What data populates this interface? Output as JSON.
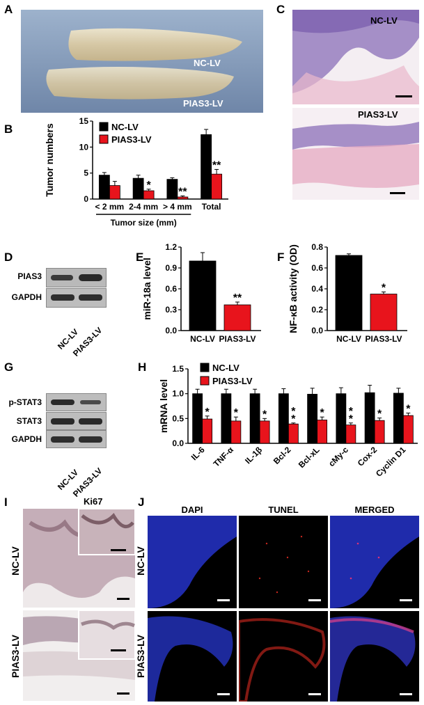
{
  "panels": {
    "A": "A",
    "B": "B",
    "C": "C",
    "D": "D",
    "E": "E",
    "F": "F",
    "G": "G",
    "H": "H",
    "I": "I",
    "J": "J"
  },
  "groups": {
    "nc": "NC-LV",
    "pias": "PIAS3-LV"
  },
  "blot_labels": {
    "d": [
      "PIAS3",
      "GAPDH"
    ],
    "g": [
      "p-STAT3",
      "STAT3",
      "GAPDH"
    ]
  },
  "ihc_label": "Ki67",
  "fluor_titles": [
    "DAPI",
    "TUNEL",
    "MERGED"
  ],
  "colors": {
    "nc": "#000000",
    "pias": "#e8141c"
  },
  "chart_data": [
    {
      "id": "B",
      "type": "bar",
      "ylabel": "Tumor numbers",
      "xlabel": "Tumor size (mm)",
      "categories": [
        "< 2 mm",
        "2-4 mm",
        "> 4 mm",
        "Total"
      ],
      "ylim": [
        0,
        15
      ],
      "yticks": [
        "0",
        "5",
        "10",
        "15"
      ],
      "series": [
        {
          "name": "NC-LV",
          "values": [
            4.6,
            4.0,
            3.8,
            12.4
          ],
          "errors": [
            0.5,
            0.6,
            0.3,
            1.0
          ]
        },
        {
          "name": "PIAS3-LV",
          "values": [
            2.6,
            1.6,
            0.4,
            4.8
          ],
          "errors": [
            0.8,
            0.3,
            0.2,
            0.9
          ]
        }
      ],
      "significance": [
        "",
        "*",
        "**",
        "**"
      ]
    },
    {
      "id": "E",
      "type": "bar",
      "ylabel": "miR-18a level",
      "categories": [
        "NC-LV",
        "PIAS3-LV"
      ],
      "ylim": [
        0,
        1.2
      ],
      "yticks": [
        "0.0",
        "0.3",
        "0.6",
        "0.9",
        "1.2"
      ],
      "values": [
        1.0,
        0.37
      ],
      "errors": [
        0.12,
        0.04
      ],
      "significance": [
        "",
        "**"
      ]
    },
    {
      "id": "F",
      "type": "bar",
      "ylabel": "NF-κB activity (OD)",
      "categories": [
        "NC-LV",
        "PIAS3-LV"
      ],
      "ylim": [
        0,
        0.8
      ],
      "yticks": [
        "0.0",
        "0.2",
        "0.4",
        "0.6",
        "0.8"
      ],
      "values": [
        0.72,
        0.35
      ],
      "errors": [
        0.015,
        0.02
      ],
      "significance": [
        "",
        "*"
      ]
    },
    {
      "id": "H",
      "type": "bar",
      "ylabel": "mRNA level",
      "categories": [
        "IL-6",
        "TNF-α",
        "IL-1β",
        "Bcl-2",
        "Bcl-xL",
        "cMy-c",
        "Cox-2",
        "Cyclin D1"
      ],
      "ylim": [
        0,
        1.5
      ],
      "yticks": [
        "0.0",
        "0.5",
        "1.0",
        "1.5"
      ],
      "series": [
        {
          "name": "NC-LV",
          "values": [
            1.0,
            1.0,
            1.0,
            1.0,
            0.99,
            1.0,
            1.02,
            1.01
          ],
          "errors": [
            0.09,
            0.09,
            0.09,
            0.1,
            0.12,
            0.12,
            0.15,
            0.1
          ]
        },
        {
          "name": "PIAS3-LV",
          "values": [
            0.49,
            0.45,
            0.45,
            0.39,
            0.47,
            0.37,
            0.46,
            0.56
          ],
          "errors": [
            0.06,
            0.08,
            0.05,
            0.02,
            0.06,
            0.04,
            0.05,
            0.05
          ]
        }
      ],
      "significance": [
        "*",
        "*",
        "*",
        "**",
        "*",
        "**",
        "*",
        "*"
      ]
    }
  ]
}
